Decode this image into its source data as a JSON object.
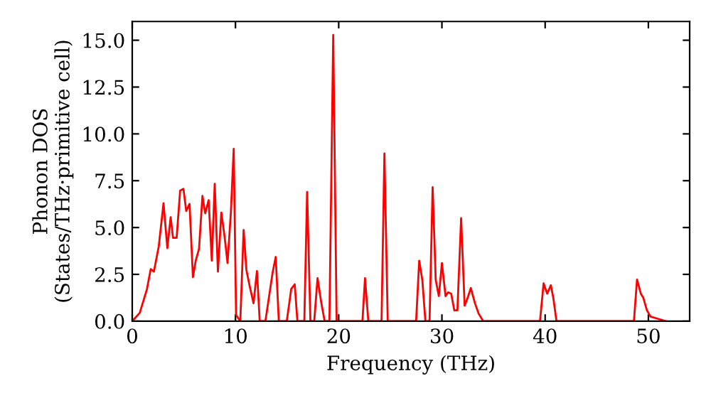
{
  "chart_data": {
    "type": "line",
    "xlabel": "Frequency (THz)",
    "ylabel": "Phonon DOS\n(States/THz·primitive cell)",
    "x": [
      0,
      0.73,
      1.42,
      1.79,
      2.1,
      2.57,
      3.03,
      3.4,
      3.72,
      3.95,
      4.3,
      4.64,
      4.96,
      5.23,
      5.55,
      5.88,
      6.15,
      6.47,
      6.8,
      7.07,
      7.4,
      7.71,
      7.99,
      8.3,
      8.63,
      8.95,
      9.23,
      9.55,
      9.83,
      10.06,
      10.47,
      10.79,
      11.06,
      11.39,
      11.75,
      12.08,
      12.35,
      12.9,
      13.6,
      13.9,
      14.2,
      14.97,
      15.4,
      15.74,
      16.0,
      16.67,
      16.94,
      17.26,
      17.63,
      17.95,
      18.32,
      18.64,
      19.1,
      19.47,
      19.8,
      22.3,
      22.55,
      22.87,
      24.15,
      24.43,
      24.75,
      27.5,
      27.8,
      28.1,
      28.4,
      28.8,
      29.1,
      29.4,
      29.7,
      30.0,
      30.35,
      30.6,
      30.9,
      31.2,
      31.5,
      31.86,
      32.2,
      32.5,
      32.8,
      33.2,
      33.56,
      34.0,
      39.5,
      39.85,
      40.2,
      40.55,
      40.8,
      41.1,
      48.6,
      48.9,
      49.27,
      49.5,
      49.86,
      50.2,
      50.8,
      51.5,
      51.7
    ],
    "series": [
      {
        "color": "#ff0000",
        "values": [
          0,
          0.45,
          1.7,
          2.78,
          2.65,
          4.0,
          6.3,
          3.9,
          5.55,
          4.45,
          4.45,
          6.97,
          7.07,
          5.88,
          6.26,
          2.35,
          3.23,
          3.86,
          6.69,
          5.76,
          6.46,
          3.23,
          7.33,
          2.65,
          5.8,
          4.5,
          3.1,
          5.76,
          9.2,
          0.33,
          0,
          4.87,
          2.73,
          1.84,
          0.96,
          2.68,
          0,
          0,
          2.6,
          3.43,
          0,
          0,
          1.72,
          1.97,
          0,
          0,
          6.9,
          0,
          0,
          2.3,
          0.96,
          0,
          0,
          15.28,
          0,
          0,
          2.3,
          0,
          0,
          8.96,
          0,
          0,
          3.23,
          2.2,
          0,
          0,
          7.15,
          2.2,
          1.34,
          3.1,
          1.34,
          1.54,
          1.47,
          0.58,
          0.58,
          5.5,
          0.83,
          1.26,
          1.77,
          0.96,
          0.4,
          0,
          0,
          2.02,
          1.47,
          1.92,
          1.21,
          0,
          0,
          2.22,
          1.47,
          1.26,
          0.58,
          0.25,
          0.15,
          0.03,
          0
        ]
      }
    ],
    "xlim": [
      0,
      54
    ],
    "ylim": [
      0,
      16
    ],
    "xticks": [
      0,
      10,
      20,
      30,
      40,
      50
    ],
    "yticks": [
      {
        "value": 0,
        "label": "0.0"
      },
      {
        "value": 2.5,
        "label": "2.5"
      },
      {
        "value": 5,
        "label": "5.0"
      },
      {
        "value": 7.5,
        "label": "7.5"
      },
      {
        "value": 10,
        "label": "10.0"
      },
      {
        "value": 12.5,
        "label": "12.5"
      },
      {
        "value": 15,
        "label": "15.0"
      }
    ],
    "grid": false,
    "marker": "none",
    "line_style": "solid"
  }
}
